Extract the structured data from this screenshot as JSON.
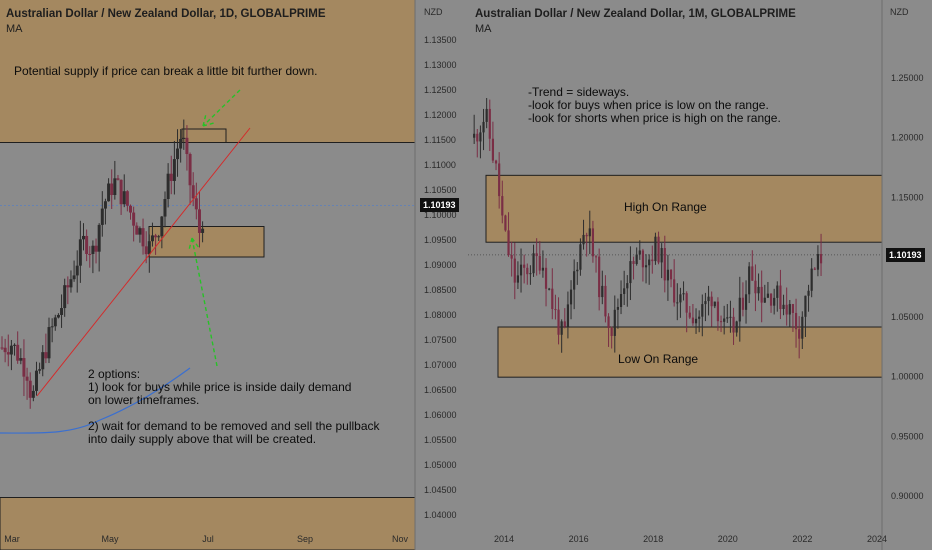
{
  "colors": {
    "background": "#8b8b8b",
    "zone_fill": "#a48860",
    "zone_border": "#1f1f1f",
    "candle_up": "#2d2d2d",
    "candle_down": "#7a2e45",
    "trend_line": "#d42a2a",
    "ma_line": "#3a6fd0",
    "arrow": "#27c227",
    "tag_bg": "#111111"
  },
  "left_chart": {
    "title": "Australian Dollar / New Zealand Dollar, 1D, GLOBALPRIME",
    "indicator": "MA",
    "currency": "NZD",
    "price_tag": "1.10193",
    "annotations": {
      "supply": "Potential supply if price can break a little bit further down.",
      "options": "2 options:\n1) look for buys while price is inside daily demand\non lower timeframes.\n\n2) wait for demand to be removed and sell the pullback\ninto daily supply above that will be created."
    }
  },
  "right_chart": {
    "title": "Australian Dollar / New Zealand Dollar, 1M, GLOBALPRIME",
    "indicator": "MA",
    "currency": "NZD",
    "price_tag": "1.10193",
    "annotations": {
      "trend": "-Trend = sideways.\n-look for buys when price is low on the range.\n-look for shorts when price is high on the range.",
      "high_range": "High On Range",
      "low_range": "Low On Range"
    }
  },
  "chart_data": [
    {
      "type": "candlestick",
      "title": "Australian Dollar / New Zealand Dollar, 1D, GLOBALPRIME",
      "x_ticks": [
        "Mar",
        "May",
        "Jul",
        "Sep",
        "Nov"
      ],
      "y_ticks": [
        1.135,
        1.13,
        1.125,
        1.12,
        1.115,
        1.11,
        1.105,
        1.1,
        1.095,
        1.09,
        1.085,
        1.08,
        1.075,
        1.07,
        1.065,
        1.06,
        1.055,
        1.05,
        1.045,
        1.04
      ],
      "ylim": [
        1.038,
        1.1385
      ],
      "last_price": 1.10193,
      "series_path": [
        [
          0,
          1.0735
        ],
        [
          3,
          1.0745
        ],
        [
          6,
          1.0715
        ],
        [
          9,
          1.0682
        ],
        [
          10,
          1.0625
        ],
        [
          13,
          1.0695
        ],
        [
          16,
          1.0758
        ],
        [
          20,
          1.0815
        ],
        [
          24,
          1.0885
        ],
        [
          28,
          1.0952
        ],
        [
          31,
          1.0925
        ],
        [
          34,
          1.1015
        ],
        [
          38,
          1.1068
        ],
        [
          42,
          1.1025
        ],
        [
          46,
          1.0975
        ],
        [
          50,
          1.0935
        ],
        [
          53,
          1.0975
        ],
        [
          56,
          1.1055
        ],
        [
          59,
          1.1125
        ],
        [
          61,
          1.1165
        ],
        [
          63,
          1.1085
        ],
        [
          65,
          1.1025
        ],
        [
          67,
          1.0965
        ],
        [
          68,
          1.0995
        ]
      ],
      "zones": [
        {
          "from": 1.1145,
          "to": 1.1385,
          "x_span": "full"
        },
        {
          "from": 1.0375,
          "to": 1.0435,
          "x_span": "full"
        },
        {
          "from": 1.0916,
          "to": 1.0977,
          "x_span": "partial"
        },
        {
          "from": 1.1145,
          "to": 1.1172,
          "x_span": "partial"
        }
      ]
    },
    {
      "type": "candlestick",
      "title": "Australian Dollar / New Zealand Dollar, 1M, GLOBALPRIME",
      "x_ticks": [
        "2014",
        "2016",
        "2018",
        "2020",
        "2022",
        "2024"
      ],
      "y_ticks": [
        1.25,
        1.2,
        1.15,
        1.1,
        1.05,
        1.0,
        0.95,
        0.9
      ],
      "ylim": [
        0.88,
        1.285
      ],
      "last_price": 1.10193,
      "series_path": [
        [
          2013.2,
          1.2
        ],
        [
          2013.5,
          1.22
        ],
        [
          2013.8,
          1.17
        ],
        [
          2014.0,
          1.12
        ],
        [
          2014.3,
          1.08
        ],
        [
          2014.6,
          1.09
        ],
        [
          2015.0,
          1.1
        ],
        [
          2015.3,
          1.06
        ],
        [
          2015.6,
          1.03
        ],
        [
          2015.9,
          1.09
        ],
        [
          2016.2,
          1.13
        ],
        [
          2016.6,
          1.07
        ],
        [
          2016.9,
          1.04
        ],
        [
          2017.2,
          1.08
        ],
        [
          2017.6,
          1.1
        ],
        [
          2017.9,
          1.1
        ],
        [
          2018.1,
          1.11
        ],
        [
          2018.4,
          1.08
        ],
        [
          2018.8,
          1.06
        ],
        [
          2019.2,
          1.05
        ],
        [
          2019.6,
          1.07
        ],
        [
          2019.9,
          1.04
        ],
        [
          2020.2,
          1.04
        ],
        [
          2020.6,
          1.09
        ],
        [
          2020.9,
          1.07
        ],
        [
          2021.2,
          1.07
        ],
        [
          2021.6,
          1.06
        ],
        [
          2021.9,
          1.04
        ],
        [
          2022.2,
          1.08
        ],
        [
          2022.5,
          1.1
        ]
      ],
      "zones": [
        {
          "from": 1.1125,
          "to": 1.1685,
          "label": "High On Range"
        },
        {
          "from": 0.9995,
          "to": 1.0415,
          "label": "Low On Range"
        }
      ]
    }
  ]
}
